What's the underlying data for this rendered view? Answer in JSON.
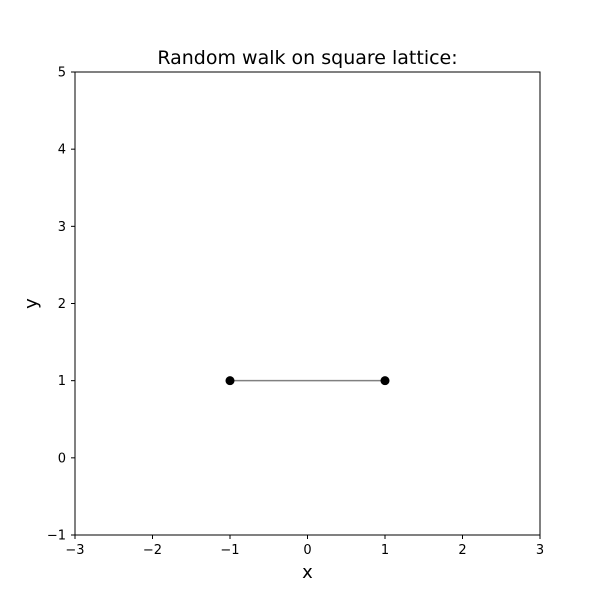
{
  "chart_data": {
    "type": "line",
    "title": "Random walk on square lattice:",
    "xlabel": "x",
    "ylabel": "y",
    "xlim": [
      -3,
      3
    ],
    "ylim": [
      -1,
      5
    ],
    "xticks": [
      -3,
      -2,
      -1,
      0,
      1,
      2,
      3
    ],
    "yticks": [
      -1,
      0,
      1,
      2,
      3,
      4,
      5
    ],
    "xtick_labels": [
      "−3",
      "−2",
      "−1",
      "0",
      "1",
      "2",
      "3"
    ],
    "ytick_labels": [
      "−1",
      "0",
      "1",
      "2",
      "3",
      "4",
      "5"
    ],
    "grid": false,
    "series": [
      {
        "points": [
          {
            "x": -1,
            "y": 1
          },
          {
            "x": 1,
            "y": 1
          }
        ],
        "line_color": "#808080",
        "marker_color": "#000000"
      }
    ]
  }
}
